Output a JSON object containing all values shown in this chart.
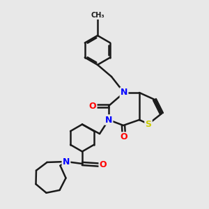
{
  "background_color": "#e8e8e8",
  "bond_color": "#1a1a1a",
  "atom_colors": {
    "N": "#0000ff",
    "O": "#ff0000",
    "S": "#cccc00"
  },
  "bond_width": 1.5,
  "font_size_atom": 9,
  "image_size": 300
}
